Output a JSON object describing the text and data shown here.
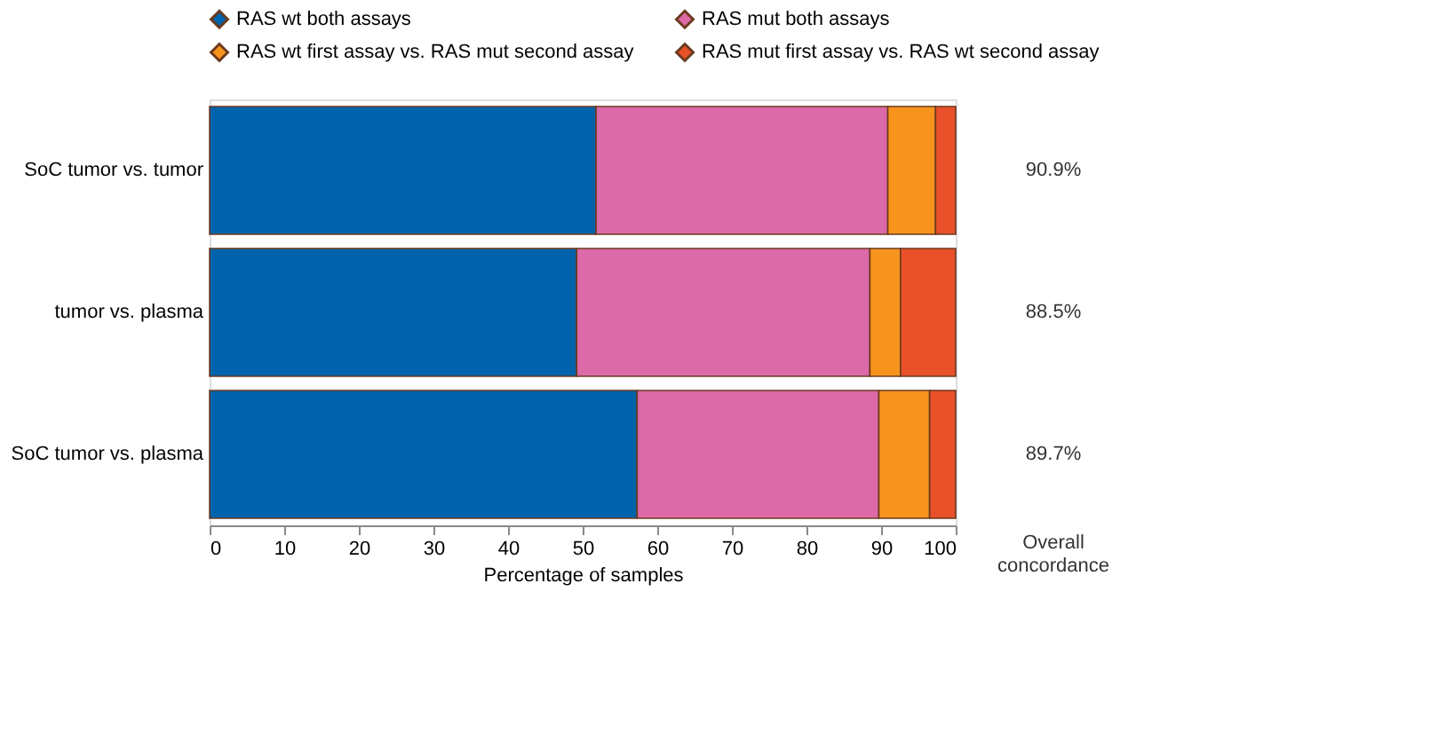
{
  "chart_data": {
    "type": "bar",
    "orientation": "horizontal",
    "stacked": true,
    "categories": [
      "SoC tumor vs. tumor",
      "tumor vs. plasma",
      "SoC tumor vs. plasma"
    ],
    "series": [
      {
        "name": "RAS wt both assays",
        "color": "#0063ac",
        "values": [
          51.8,
          49.2,
          57.3
        ]
      },
      {
        "name": "RAS mut both assays",
        "color": "#dc6aa8",
        "values": [
          39.1,
          39.3,
          32.4
        ]
      },
      {
        "name": "RAS wt first assay vs. RAS mut second assay",
        "color": "#f7941d",
        "values": [
          6.4,
          4.1,
          6.8
        ]
      },
      {
        "name": "RAS mut first assay vs. RAS wt second assay",
        "color": "#e8512a",
        "values": [
          2.7,
          7.4,
          3.5
        ]
      }
    ],
    "xlabel": "Percentage of samples",
    "xlim": [
      0,
      100
    ],
    "xticks": [
      0,
      10,
      20,
      30,
      40,
      50,
      60,
      70,
      80,
      90,
      100
    ],
    "annotations": [
      "90.9%",
      "88.5%",
      "89.7%",
      "Overall concordance"
    ],
    "legend": "top",
    "grid": false,
    "marker": "diamond"
  }
}
